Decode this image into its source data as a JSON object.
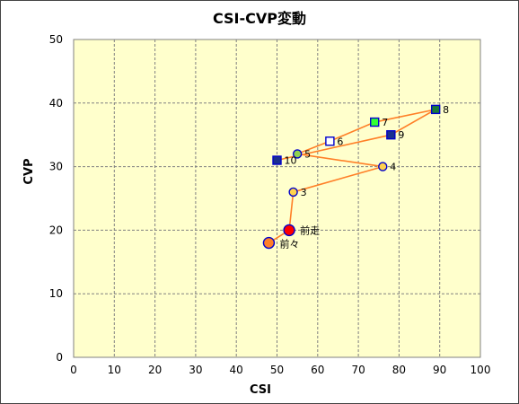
{
  "chart_data": {
    "type": "scatter",
    "title": "CSI-CVP変動",
    "xlabel": "CSI",
    "ylabel": "CVP",
    "xlim": [
      0,
      100
    ],
    "ylim": [
      0,
      50
    ],
    "xticks": [
      0,
      10,
      20,
      30,
      40,
      50,
      60,
      70,
      80,
      90,
      100
    ],
    "yticks": [
      0,
      10,
      20,
      30,
      40,
      50
    ],
    "grid": true,
    "line_color": "#ff7f27",
    "plot_background": "#ffffcc",
    "path_order": [
      "前々",
      "前走",
      "3",
      "4",
      "5",
      "6",
      "7",
      "8",
      "9",
      "10"
    ],
    "points": [
      {
        "label": "前々",
        "x": 48,
        "y": 18,
        "marker": "circle",
        "size": "large",
        "fill": "#ff7f27",
        "stroke": "#0000cc"
      },
      {
        "label": "前走",
        "x": 53,
        "y": 20,
        "marker": "circle",
        "size": "large",
        "fill": "#ff0000",
        "stroke": "#0000cc"
      },
      {
        "label": "3",
        "x": 54,
        "y": 26,
        "marker": "circle",
        "size": "small",
        "fill": "#ffd24d",
        "stroke": "#0000cc"
      },
      {
        "label": "4",
        "x": 76,
        "y": 30,
        "marker": "circle",
        "size": "small",
        "fill": "#ffd24d",
        "stroke": "#0000cc"
      },
      {
        "label": "5",
        "x": 55,
        "y": 32,
        "marker": "circle",
        "size": "small",
        "fill": "#8fd14f",
        "stroke": "#0000cc"
      },
      {
        "label": "6",
        "x": 63,
        "y": 34,
        "marker": "square",
        "size": "small",
        "fill": "#ffffff",
        "stroke": "#0000cc"
      },
      {
        "label": "7",
        "x": 74,
        "y": 37,
        "marker": "square",
        "size": "small",
        "fill": "#33ff33",
        "stroke": "#0000cc"
      },
      {
        "label": "8",
        "x": 89,
        "y": 39,
        "marker": "square",
        "size": "small",
        "fill": "#1a7a3a",
        "stroke": "#0000cc"
      },
      {
        "label": "9",
        "x": 78,
        "y": 35,
        "marker": "square",
        "size": "small",
        "fill": "#1a2f8f",
        "stroke": "#0000cc"
      },
      {
        "label": "10",
        "x": 50,
        "y": 31,
        "marker": "square",
        "size": "small",
        "fill": "#1a2f8f",
        "stroke": "#0000cc"
      }
    ]
  }
}
